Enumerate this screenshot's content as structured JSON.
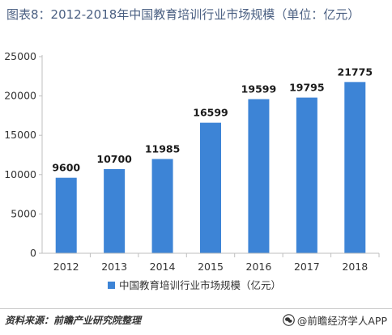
{
  "title": "图表8：2012-2018年中国教育培训行业市场规模（单位：亿元）",
  "source": "资料来源：前瞻产业研究院整理",
  "brand": "@前瞻经济学人APP",
  "colors": {
    "bar": "#3d84d6",
    "title": "#4a5f82"
  },
  "icons": {
    "brand": "wechat-bubble-icon"
  },
  "chart_data": {
    "type": "bar",
    "categories": [
      "2012",
      "2013",
      "2014",
      "2015",
      "2016",
      "2017",
      "2018"
    ],
    "series": [
      {
        "name": "中国教育培训行业市场规模（亿元）",
        "values": [
          9600,
          10700,
          11985,
          16599,
          19599,
          19795,
          21775
        ]
      }
    ],
    "data_labels": [
      "9600",
      "10700",
      "11985",
      "16599",
      "19599",
      "19795",
      "21775"
    ],
    "y_ticks": [
      "0",
      "5000",
      "10000",
      "15000",
      "20000",
      "25000"
    ],
    "ylim": [
      0,
      25000
    ],
    "xlabel": "",
    "ylabel": "",
    "grid": false,
    "legend_position": "bottom-center"
  }
}
